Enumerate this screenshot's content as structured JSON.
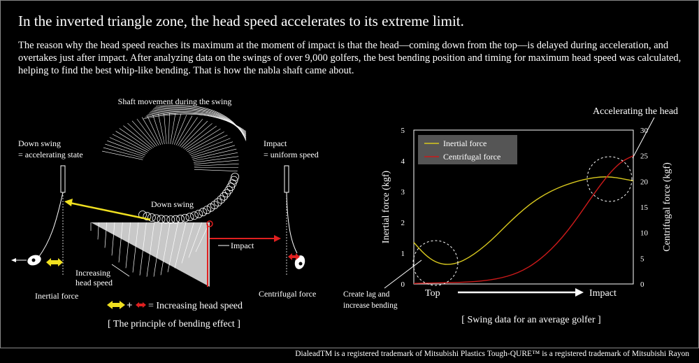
{
  "header": {
    "title": "In the inverted triangle zone, the head speed accelerates to its extreme limit.",
    "intro": "The reason why the head speed reaches its maximum at the moment of impact is that the head—coming down from the top—is delayed during acceleration, and overtakes just after impact. After analyzing data on the swings of over 9,000 golfers, the best bending position and timing for maximum head speed was calculated, helping to find the best whip-like bending. That is how the nabla shaft came about."
  },
  "diagram": {
    "shaft_title": "Shaft movement during the swing",
    "down_swing_state_1": "Down swing",
    "down_swing_state_2": "= accelerating state",
    "impact_state_1": "Impact",
    "impact_state_2": "= uniform speed",
    "down_swing": "Down swing",
    "impact": "Impact",
    "increasing_1": "Increasing",
    "increasing_2": "head speed",
    "inertial_force": "Inertial force",
    "centrifugal_force": "Centrifugal force",
    "legend_text": "= Increasing head speed",
    "caption": "[ The principle of bending effect ]",
    "colors": {
      "inertial": "#f0e020",
      "centrifugal": "#e02020"
    }
  },
  "chart_data": {
    "type": "line",
    "accelerating_label": "Accelerating the head",
    "lag_label_1": "Create lag and",
    "lag_label_2": "increase bending",
    "ylabel_left": "Inertial force (kgf)",
    "ylabel_right": "Centrifugal force (kgf)",
    "xlabel_start": "Top",
    "xlabel_end": "Impact",
    "caption": "[ Swing data for an average golfer ]",
    "ylim_left": [
      0,
      5
    ],
    "ylim_right": [
      0,
      30
    ],
    "yticks_left": [
      "0",
      "1",
      "2",
      "3",
      "4",
      "5"
    ],
    "yticks_right": [
      "0",
      "5",
      "10",
      "15",
      "20",
      "25",
      "30"
    ],
    "x": [
      0,
      0.05,
      0.1,
      0.15,
      0.2,
      0.25,
      0.3,
      0.35,
      0.4,
      0.45,
      0.5,
      0.55,
      0.6,
      0.65,
      0.7,
      0.75,
      0.8,
      0.85,
      0.9,
      0.95,
      1.0
    ],
    "series": [
      {
        "name": "Inertial force",
        "axis": "left",
        "color": "#d8c81e",
        "values": [
          1.35,
          0.95,
          0.7,
          0.62,
          0.68,
          0.85,
          1.1,
          1.4,
          1.75,
          2.1,
          2.42,
          2.7,
          2.92,
          3.1,
          3.24,
          3.35,
          3.43,
          3.48,
          3.48,
          3.42,
          3.35
        ]
      },
      {
        "name": "Centrifugal force",
        "axis": "right",
        "color": "#cc1a1a",
        "values": [
          0.1,
          0.15,
          0.2,
          0.25,
          0.3,
          0.4,
          0.55,
          0.8,
          1.2,
          1.8,
          2.7,
          4.0,
          5.7,
          7.8,
          10.3,
          13.2,
          16.3,
          19.3,
          22.0,
          24.0,
          25.0
        ]
      }
    ]
  },
  "footer": "DialeadTM is a registered trademark of Mitsubishi Plastics Tough-QURE™ is a registered trademark of Mitsubishi Rayon"
}
